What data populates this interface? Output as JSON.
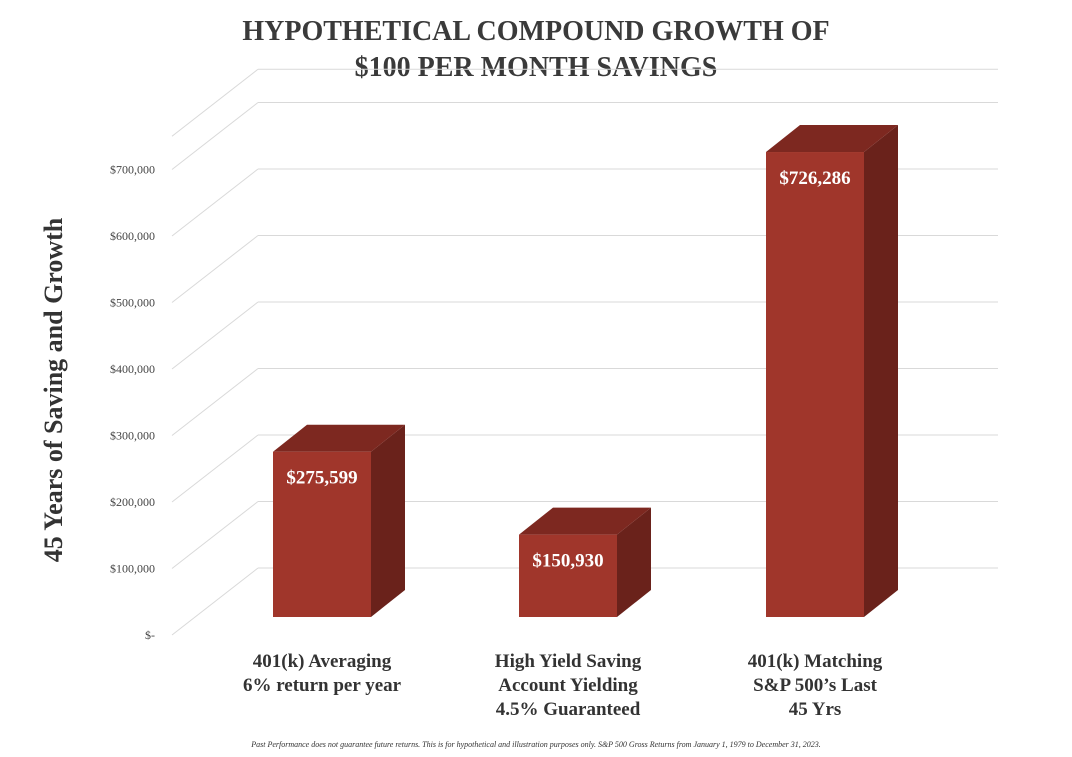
{
  "chart_data": {
    "type": "bar",
    "title_lines": [
      "HYPOTHETICAL COMPOUND GROWTH OF",
      "$100 PER MONTH SAVINGS"
    ],
    "ylabel": "45 Years of Saving and Growth",
    "categories": [
      [
        "401(k) Averaging",
        "6% return per year"
      ],
      [
        "High Yield Saving",
        "Account Yielding",
        "4.5% Guaranteed"
      ],
      [
        "401(k) Matching",
        "S&P 500’s Last",
        "45 Yrs"
      ]
    ],
    "values": [
      275599,
      150930,
      726286
    ],
    "data_labels": [
      "$275,599",
      "$150,930",
      "$726,286"
    ],
    "ylim": [
      0,
      750000
    ],
    "yticks": [
      0,
      100000,
      200000,
      300000,
      400000,
      500000,
      600000,
      700000
    ],
    "ytick_labels": [
      "$-",
      "$100,000",
      "$200,000",
      "$300,000",
      "$400,000",
      "$500,000",
      "$600,000",
      "$700,000"
    ],
    "style": "3d-column",
    "grid": true,
    "colors": {
      "bar_front": "#a0362b",
      "bar_top": "#7d2820",
      "bar_side": "#6a221b",
      "grid": "#d9d9d9"
    }
  },
  "footnote": "Past Performance does not guarantee future returns. This is for hypothetical and illustration purposes only. S&P 500 Gross Returns from January 1, 1979 to December 31, 2023."
}
